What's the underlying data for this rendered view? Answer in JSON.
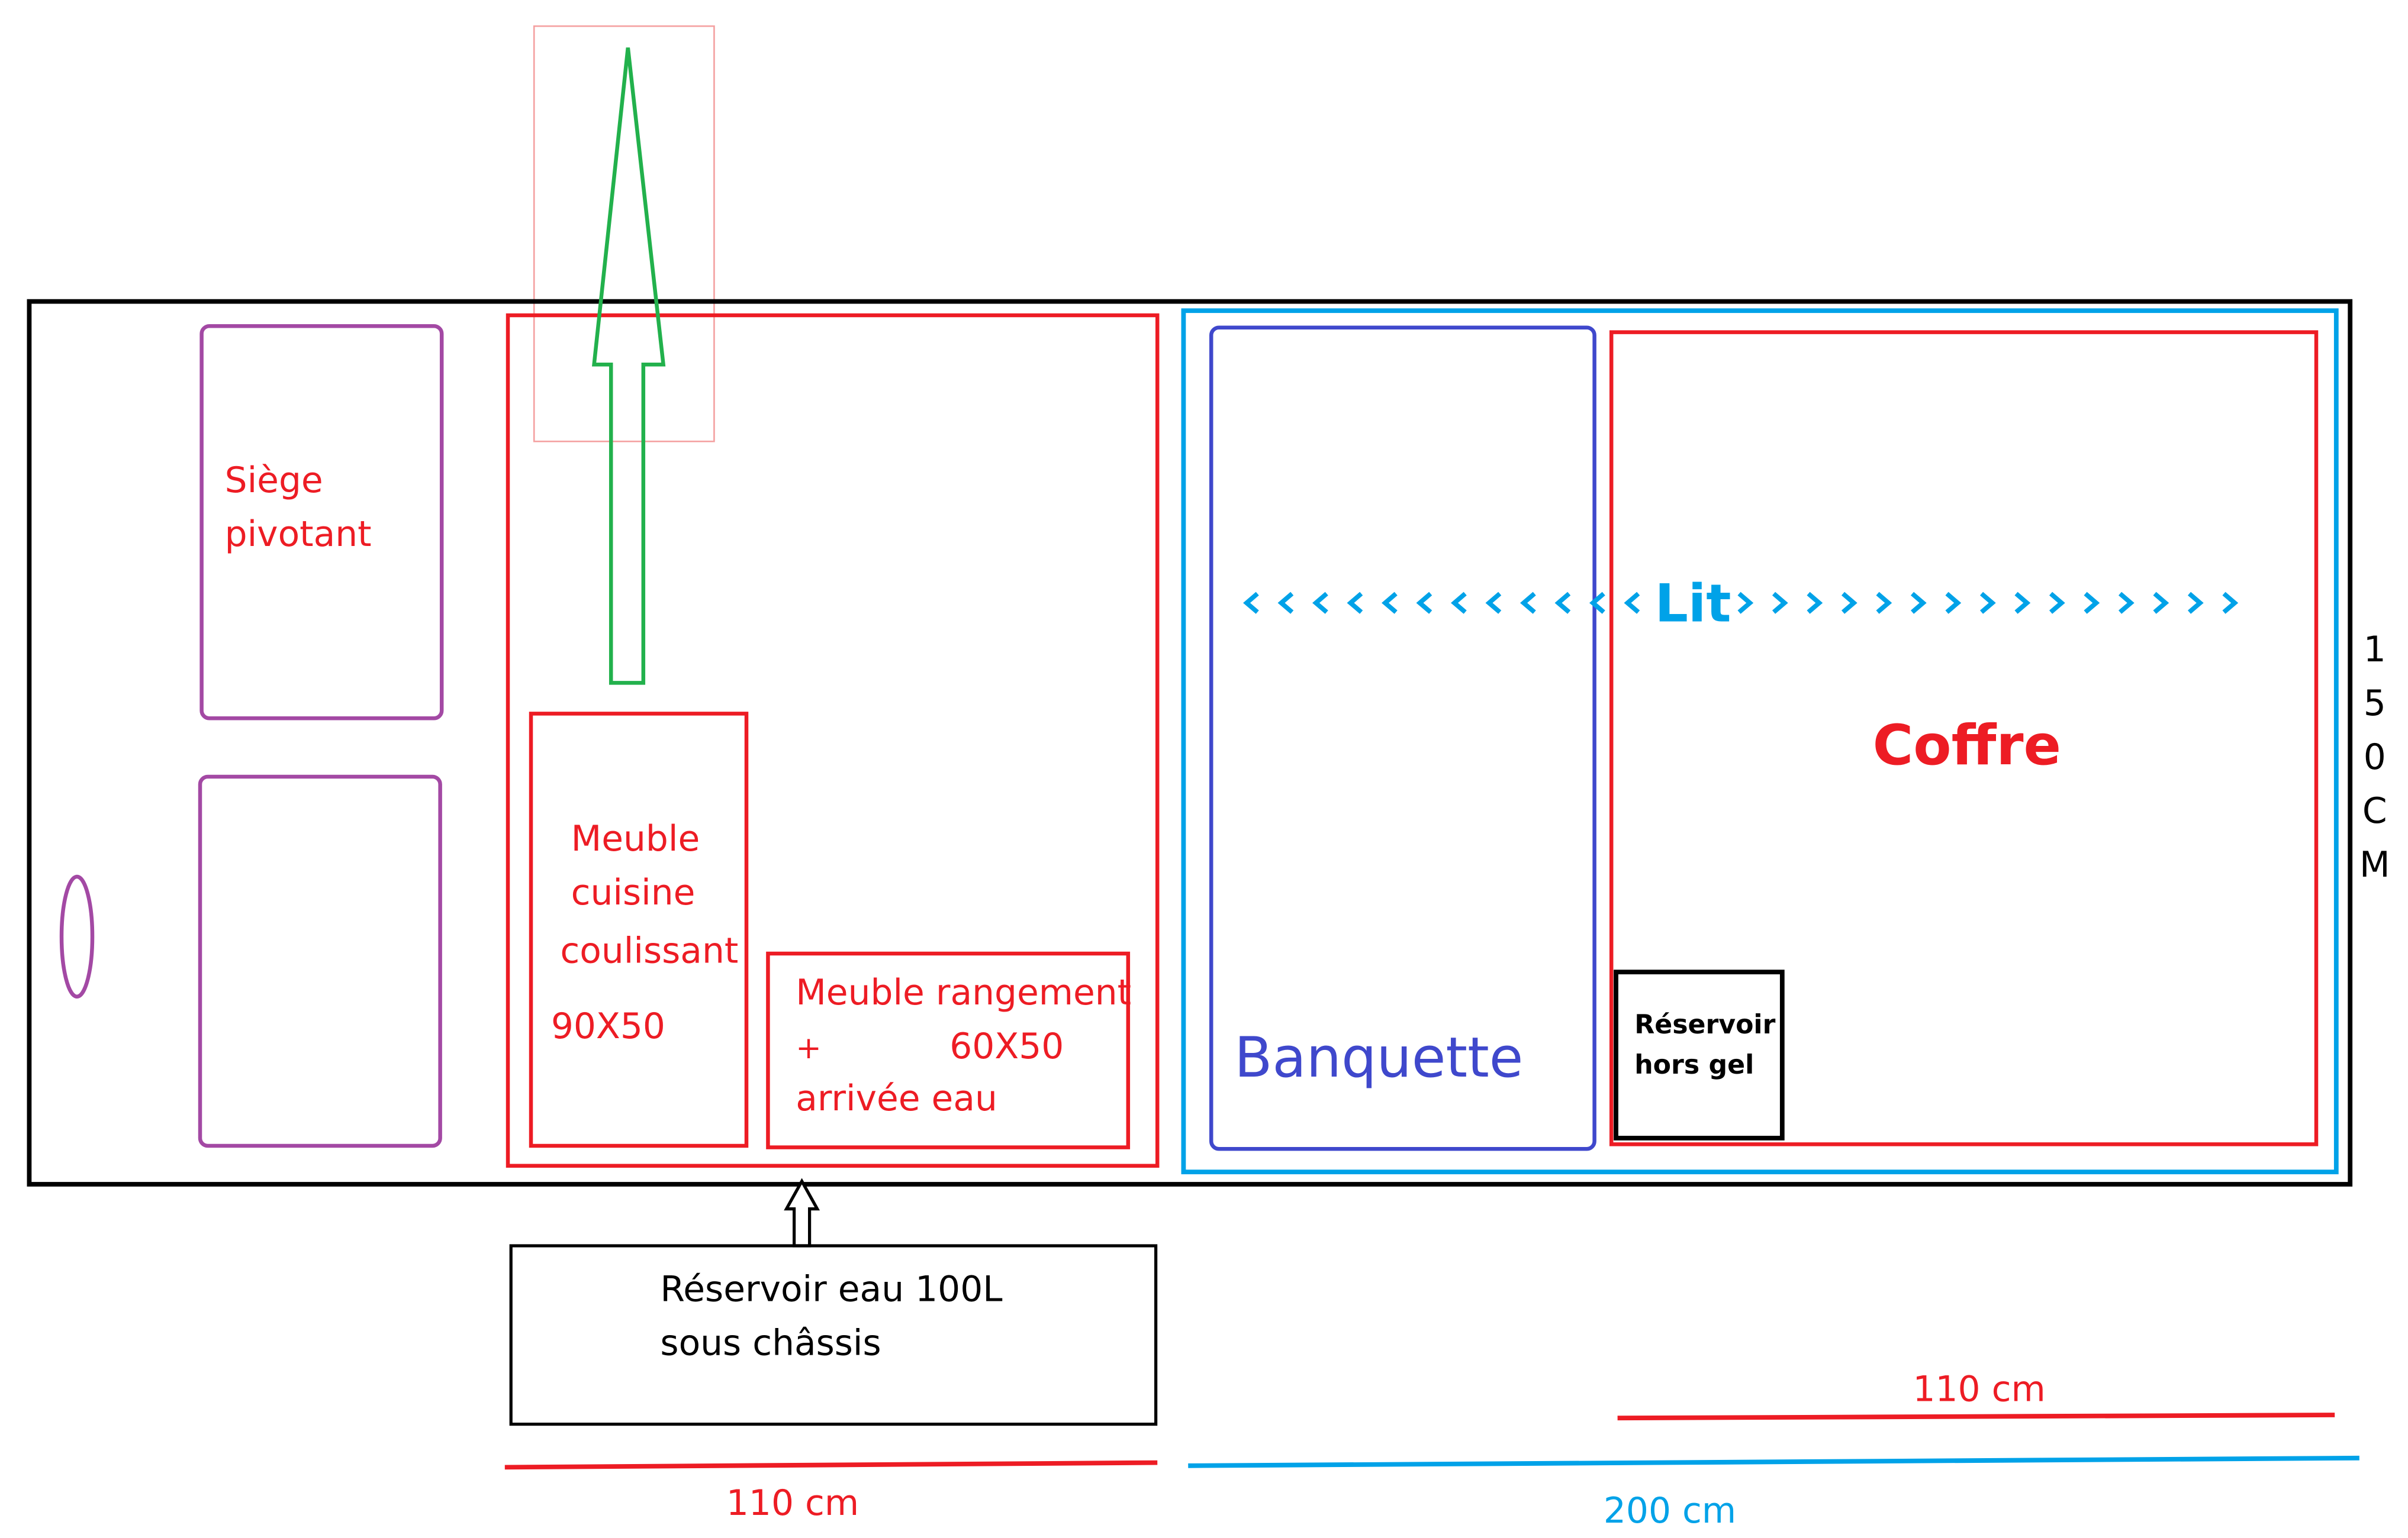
{
  "colors": {
    "outline": "#000000",
    "furniture": "#ed1c24",
    "seat": "#a349a4",
    "bed": "#00a2e8",
    "banquette": "#3f48cc",
    "arrow": "#22b14c"
  },
  "seats": {
    "label_line1": "Siège",
    "label_line2": "pivotant"
  },
  "kitchen": {
    "line1": "Meuble",
    "line2": "cuisine",
    "line3": "coulissant",
    "size": "90X50"
  },
  "storage": {
    "line1": "Meuble rangement",
    "plus": "+",
    "size": "60X50",
    "line3": "arrivée eau"
  },
  "bed": {
    "label": "Lit"
  },
  "banquette": {
    "label": "Banquette"
  },
  "coffre": {
    "label": "Coffre"
  },
  "frost_tank": {
    "line1": "Réservoir",
    "line2": "hors gel"
  },
  "water_tank": {
    "line1": "Réservoir eau 100L",
    "line2": "sous châssis"
  },
  "width_label": {
    "chars": [
      "1",
      "5",
      "0",
      "C",
      "M"
    ]
  },
  "dimensions": {
    "kitchen": "110 cm",
    "coffre": "110 cm",
    "bed": "200 cm"
  }
}
